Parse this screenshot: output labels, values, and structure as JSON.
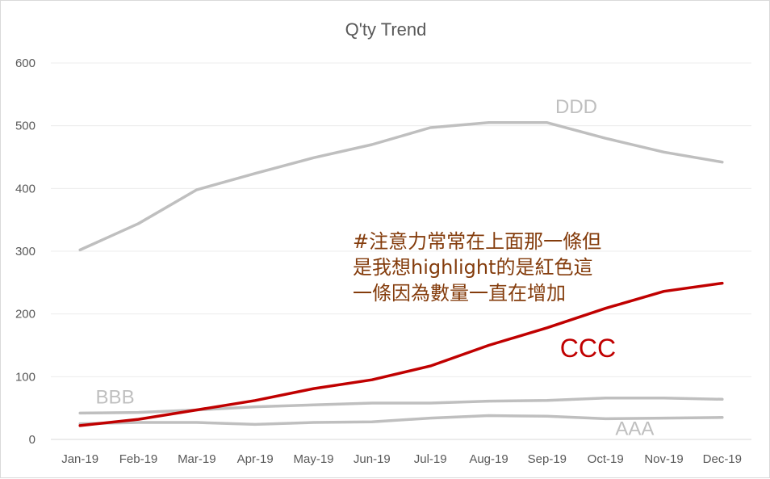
{
  "chart_data": {
    "type": "line",
    "title": "Q'ty Trend",
    "xlabel": "",
    "ylabel": "",
    "categories": [
      "Jan-19",
      "Feb-19",
      "Mar-19",
      "Apr-19",
      "May-19",
      "Jun-19",
      "Jul-19",
      "Aug-19",
      "Sep-19",
      "Oct-19",
      "Nov-19",
      "Dec-19"
    ],
    "ylim": [
      0,
      600
    ],
    "yticks": [
      "0",
      "100",
      "200",
      "300",
      "400",
      "500",
      "600"
    ],
    "grid": true,
    "legend": "none",
    "series": [
      {
        "name": "AAA",
        "color": "#bfbfbf",
        "values": [
          25,
          27,
          27,
          24,
          27,
          28,
          34,
          38,
          37,
          33,
          34,
          35
        ]
      },
      {
        "name": "BBB",
        "color": "#bfbfbf",
        "values": [
          42,
          43,
          47,
          52,
          55,
          58,
          58,
          61,
          62,
          66,
          66,
          64
        ]
      },
      {
        "name": "CCC",
        "color": "#c00000",
        "values": [
          22,
          32,
          47,
          62,
          81,
          95,
          117,
          150,
          178,
          209,
          236,
          249
        ]
      },
      {
        "name": "DDD",
        "color": "#bfbfbf",
        "values": [
          302,
          344,
          398,
          424,
          449,
          470,
          497,
          505,
          505,
          480,
          458,
          442
        ]
      }
    ],
    "annotation": {
      "lines": [
        "#注意力常常在上面那一條但",
        "是我想highlight的是紅色這",
        "一條因為數量一直在增加"
      ],
      "color": "#843c0c"
    }
  }
}
